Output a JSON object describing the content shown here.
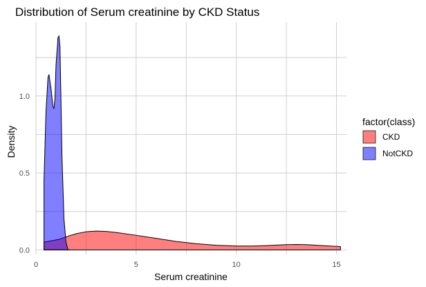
{
  "chart_data": {
    "type": "area",
    "title": "Distribution of Serum creatinine by CKD Status",
    "xlabel": "Serum creatinine",
    "ylabel": "Density",
    "xlim": [
      0,
      15.5
    ],
    "ylim": [
      -0.03,
      1.48
    ],
    "x_ticks": [
      0,
      5,
      10,
      15
    ],
    "x_tick_labels": [
      "0",
      "5",
      "10",
      "15"
    ],
    "y_ticks": [
      0.0,
      0.5,
      1.0
    ],
    "y_tick_labels": [
      "0.0",
      "0.5",
      "1.0"
    ],
    "grid": true,
    "legend": {
      "title": "factor(class)",
      "placement": "right"
    },
    "series": [
      {
        "name": "CKD",
        "color": "#ff0000",
        "opacity": 0.5,
        "points": [
          [
            0.4,
            0.05
          ],
          [
            0.8,
            0.06
          ],
          [
            1.2,
            0.07
          ],
          [
            1.5,
            0.085
          ],
          [
            2.0,
            0.105
          ],
          [
            2.5,
            0.118
          ],
          [
            3.0,
            0.122
          ],
          [
            3.5,
            0.12
          ],
          [
            4.0,
            0.113
          ],
          [
            5.0,
            0.095
          ],
          [
            6.0,
            0.075
          ],
          [
            7.0,
            0.055
          ],
          [
            8.0,
            0.04
          ],
          [
            9.0,
            0.03
          ],
          [
            10.0,
            0.025
          ],
          [
            10.8,
            0.025
          ],
          [
            11.5,
            0.028
          ],
          [
            12.5,
            0.034
          ],
          [
            13.0,
            0.035
          ],
          [
            13.5,
            0.034
          ],
          [
            14.0,
            0.03
          ],
          [
            14.5,
            0.026
          ],
          [
            15.2,
            0.022
          ]
        ]
      },
      {
        "name": "NotCKD",
        "color": "#0000ff",
        "opacity": 0.5,
        "points": [
          [
            0.4,
            0.45
          ],
          [
            0.5,
            0.9
          ],
          [
            0.6,
            1.12
          ],
          [
            0.65,
            1.14
          ],
          [
            0.75,
            1.05
          ],
          [
            0.85,
            0.93
          ],
          [
            0.9,
            0.92
          ],
          [
            0.95,
            0.99
          ],
          [
            1.0,
            1.2
          ],
          [
            1.1,
            1.38
          ],
          [
            1.15,
            1.39
          ],
          [
            1.2,
            1.32
          ],
          [
            1.3,
            0.6
          ],
          [
            1.4,
            0.2
          ],
          [
            1.5,
            0.05
          ],
          [
            1.6,
            0.0
          ],
          [
            1.7,
            0.0
          ]
        ]
      }
    ]
  }
}
